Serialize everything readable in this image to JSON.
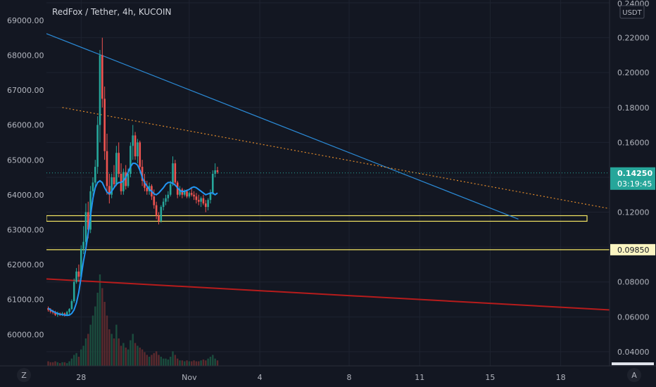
{
  "chart_title": "RedFox / Tether, 4h, KUCOIN",
  "corner_left": "Z",
  "corner_right": "A",
  "colors": {
    "background": "#131722",
    "grid": "#1e2330",
    "text": "#b2b5be",
    "up": "#26a69a",
    "down": "#ef5350",
    "ma": "#2196f3",
    "zone": "#f5e663",
    "trend_main": "#2b8ad6",
    "trend_dotted": "#e0892a",
    "trend_red": "#b71c1c",
    "price_line": "#26a69a"
  },
  "chart_data": {
    "type": "candlestick",
    "left_axis": {
      "labels": [
        "69000.00",
        "68000.00",
        "67000.00",
        "66000.00",
        "65000.00",
        "64000.00",
        "63000.00",
        "62000.00",
        "61000.00",
        "60000.00"
      ],
      "range": [
        59100,
        69500
      ]
    },
    "right_axis": {
      "unit": "USDT",
      "labels": [
        "0.24000",
        "0.22000",
        "0.20000",
        "0.18000",
        "0.16000",
        "0.14000",
        "0.12000",
        "0.10000",
        "0.08000",
        "0.06000",
        "0.04000"
      ],
      "range": [
        0.0319,
        0.24
      ]
    },
    "x_axis": {
      "ticks": [
        "28",
        "Nov",
        "4",
        "8",
        "11",
        "15",
        "18"
      ],
      "tick_candle_index": [
        14,
        60,
        90,
        128,
        158,
        188,
        218
      ]
    },
    "price_tags": [
      {
        "price": "0.14250",
        "countdown": "03:19:45",
        "value": 0.1425
      },
      {
        "price": "0.09850",
        "value": 0.0985
      }
    ],
    "zones": [
      {
        "low": 0.1148,
        "high": 0.118
      },
      {
        "low": 0.0985,
        "high": 0.0985
      }
    ],
    "trendlines": [
      {
        "name": "descending-resistance",
        "from": [
          -2,
          0.223
        ],
        "to": [
          200,
          0.116
        ]
      },
      {
        "name": "dotted-resistance",
        "from": [
          6,
          0.18
        ],
        "to": [
          243,
          0.121
        ]
      },
      {
        "name": "long-term-trendline",
        "from": [
          -38,
          0.0845
        ],
        "to": [
          322,
          0.0578
        ]
      }
    ],
    "moving_average": [
      0.065,
      0.064,
      0.0632,
      0.0625,
      0.062,
      0.0615,
      0.0612,
      0.061,
      0.0608,
      0.061,
      0.062,
      0.064,
      0.068,
      0.074,
      0.083,
      0.092,
      0.099,
      0.108,
      0.118,
      0.128,
      0.134,
      0.137,
      0.138,
      0.137,
      0.134,
      0.1315,
      0.1305,
      0.132,
      0.134,
      0.136,
      0.137,
      0.137,
      0.138,
      0.14,
      0.143,
      0.146,
      0.148,
      0.148,
      0.147,
      0.144,
      0.14,
      0.137,
      0.135,
      0.133,
      0.132,
      0.1305,
      0.13,
      0.131,
      0.1325,
      0.134,
      0.136,
      0.137,
      0.137,
      0.1365,
      0.1355,
      0.134,
      0.1325,
      0.1318,
      0.132,
      0.1325,
      0.133,
      0.134,
      0.1345,
      0.134,
      0.133,
      0.132,
      0.131,
      0.13,
      0.1305,
      0.131,
      0.131,
      0.13,
      0.131
    ],
    "candles_ohlc": [
      [
        0.065,
        0.066,
        0.063,
        0.064
      ],
      [
        0.064,
        0.065,
        0.062,
        0.063
      ],
      [
        0.063,
        0.064,
        0.0615,
        0.0625
      ],
      [
        0.0625,
        0.0635,
        0.0605,
        0.0612
      ],
      [
        0.0612,
        0.063,
        0.06,
        0.062
      ],
      [
        0.062,
        0.0625,
        0.0605,
        0.061
      ],
      [
        0.061,
        0.0628,
        0.0605,
        0.062
      ],
      [
        0.062,
        0.0625,
        0.0602,
        0.0612
      ],
      [
        0.0612,
        0.0635,
        0.0605,
        0.0628
      ],
      [
        0.0628,
        0.065,
        0.0615,
        0.0645
      ],
      [
        0.0645,
        0.07,
        0.064,
        0.069
      ],
      [
        0.069,
        0.082,
        0.068,
        0.08
      ],
      [
        0.08,
        0.088,
        0.079,
        0.086
      ],
      [
        0.086,
        0.09,
        0.08,
        0.083
      ],
      [
        0.083,
        0.101,
        0.082,
        0.099
      ],
      [
        0.099,
        0.112,
        0.096,
        0.103
      ],
      [
        0.103,
        0.125,
        0.098,
        0.12
      ],
      [
        0.12,
        0.126,
        0.105,
        0.11
      ],
      [
        0.11,
        0.135,
        0.108,
        0.132
      ],
      [
        0.132,
        0.14,
        0.126,
        0.137
      ],
      [
        0.137,
        0.15,
        0.134,
        0.146
      ],
      [
        0.146,
        0.175,
        0.142,
        0.17
      ],
      [
        0.17,
        0.213,
        0.16,
        0.21
      ],
      [
        0.21,
        0.22,
        0.18,
        0.185
      ],
      [
        0.185,
        0.192,
        0.15,
        0.155
      ],
      [
        0.155,
        0.165,
        0.13,
        0.135
      ],
      [
        0.135,
        0.142,
        0.125,
        0.13
      ],
      [
        0.13,
        0.142,
        0.128,
        0.14
      ],
      [
        0.14,
        0.147,
        0.134,
        0.136
      ],
      [
        0.136,
        0.158,
        0.135,
        0.154
      ],
      [
        0.154,
        0.16,
        0.14,
        0.142
      ],
      [
        0.142,
        0.148,
        0.13,
        0.132
      ],
      [
        0.132,
        0.145,
        0.13,
        0.143
      ],
      [
        0.143,
        0.147,
        0.133,
        0.135
      ],
      [
        0.135,
        0.145,
        0.134,
        0.142
      ],
      [
        0.142,
        0.16,
        0.14,
        0.158
      ],
      [
        0.158,
        0.17,
        0.15,
        0.164
      ],
      [
        0.164,
        0.166,
        0.15,
        0.152
      ],
      [
        0.152,
        0.162,
        0.148,
        0.16
      ],
      [
        0.16,
        0.161,
        0.145,
        0.146
      ],
      [
        0.146,
        0.15,
        0.135,
        0.138
      ],
      [
        0.138,
        0.142,
        0.132,
        0.134
      ],
      [
        0.134,
        0.138,
        0.13,
        0.132
      ],
      [
        0.132,
        0.137,
        0.13,
        0.135
      ],
      [
        0.135,
        0.136,
        0.127,
        0.129
      ],
      [
        0.129,
        0.133,
        0.122,
        0.124
      ],
      [
        0.124,
        0.126,
        0.116,
        0.118
      ],
      [
        0.118,
        0.12,
        0.113,
        0.115
      ],
      [
        0.115,
        0.124,
        0.114,
        0.123
      ],
      [
        0.123,
        0.128,
        0.121,
        0.126
      ],
      [
        0.126,
        0.13,
        0.124,
        0.128
      ],
      [
        0.128,
        0.132,
        0.126,
        0.13
      ],
      [
        0.13,
        0.138,
        0.129,
        0.136
      ],
      [
        0.136,
        0.152,
        0.135,
        0.148
      ],
      [
        0.148,
        0.15,
        0.135,
        0.137
      ],
      [
        0.137,
        0.138,
        0.128,
        0.13
      ],
      [
        0.13,
        0.135,
        0.129,
        0.133
      ],
      [
        0.133,
        0.134,
        0.128,
        0.13
      ],
      [
        0.13,
        0.133,
        0.129,
        0.132
      ],
      [
        0.132,
        0.133,
        0.128,
        0.129
      ],
      [
        0.129,
        0.132,
        0.128,
        0.131
      ],
      [
        0.131,
        0.134,
        0.129,
        0.13
      ],
      [
        0.13,
        0.132,
        0.127,
        0.129
      ],
      [
        0.129,
        0.131,
        0.125,
        0.127
      ],
      [
        0.127,
        0.13,
        0.124,
        0.126
      ],
      [
        0.126,
        0.129,
        0.123,
        0.128
      ],
      [
        0.128,
        0.13,
        0.124,
        0.125
      ],
      [
        0.125,
        0.127,
        0.12,
        0.123
      ],
      [
        0.123,
        0.128,
        0.121,
        0.127
      ],
      [
        0.127,
        0.133,
        0.125,
        0.131
      ],
      [
        0.131,
        0.144,
        0.13,
        0.142
      ],
      [
        0.142,
        0.148,
        0.14,
        0.144
      ],
      [
        0.144,
        0.146,
        0.142,
        0.143
      ]
    ],
    "volume": [
      0.05,
      0.04,
      0.04,
      0.05,
      0.04,
      0.03,
      0.04,
      0.04,
      0.03,
      0.05,
      0.08,
      0.12,
      0.14,
      0.1,
      0.18,
      0.22,
      0.3,
      0.35,
      0.45,
      0.55,
      0.65,
      0.8,
      1.0,
      0.85,
      0.7,
      0.55,
      0.4,
      0.35,
      0.3,
      0.45,
      0.3,
      0.22,
      0.25,
      0.2,
      0.18,
      0.28,
      0.35,
      0.25,
      0.22,
      0.2,
      0.18,
      0.15,
      0.12,
      0.1,
      0.12,
      0.14,
      0.16,
      0.12,
      0.1,
      0.08,
      0.08,
      0.07,
      0.1,
      0.16,
      0.12,
      0.08,
      0.06,
      0.06,
      0.05,
      0.06,
      0.05,
      0.05,
      0.06,
      0.05,
      0.05,
      0.06,
      0.07,
      0.06,
      0.08,
      0.1,
      0.12,
      0.08,
      0.06
    ]
  }
}
